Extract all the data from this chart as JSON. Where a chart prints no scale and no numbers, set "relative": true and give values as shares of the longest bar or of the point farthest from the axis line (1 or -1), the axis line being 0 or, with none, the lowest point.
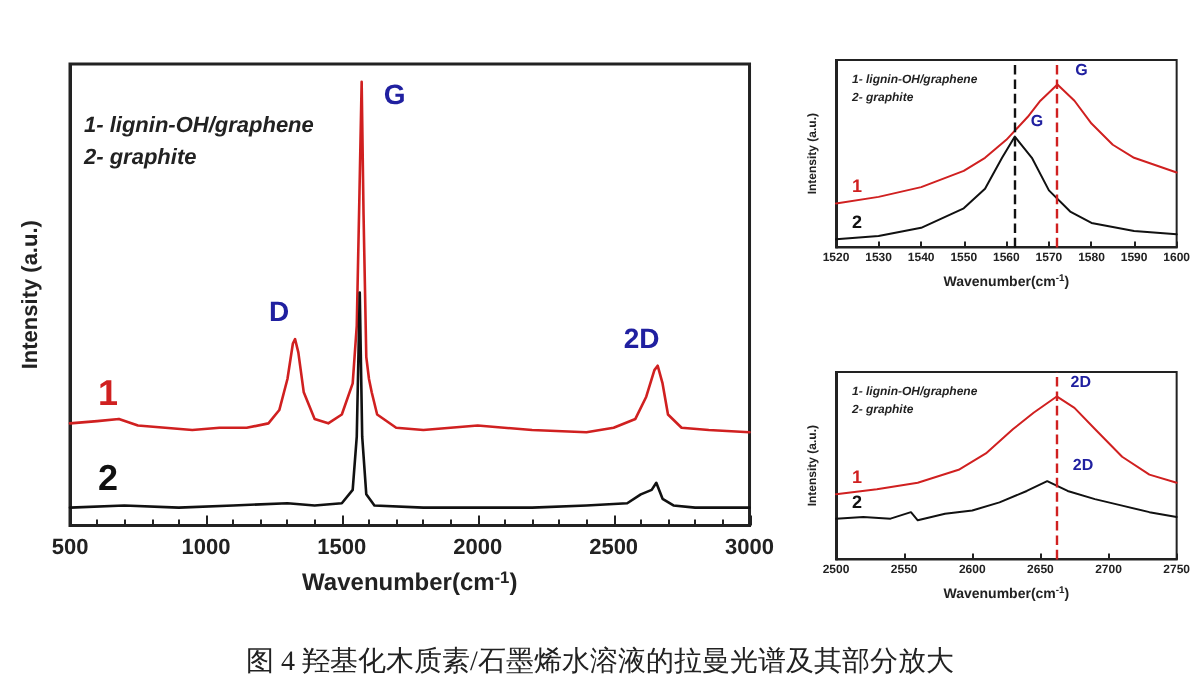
{
  "chart_data": [
    {
      "type": "line",
      "xlabel": "Wavenumber(cm$^{-1}$)",
      "ylabel": "Intensity (a.u.)",
      "relative": true,
      "xlim": [
        500,
        3000
      ],
      "xticks": [
        500,
        1000,
        1500,
        2000,
        2500,
        3000
      ],
      "grid": false,
      "legend": false,
      "line_style": "solid",
      "tick_labels": "x",
      "annotations": [
        "1- lignin-OH/graphene",
        "2- graphite",
        {
          "text": "D",
          "x": 1328,
          "y": 0.42
        },
        {
          "text": "G",
          "x": 1573,
          "y": 1.0
        },
        {
          "text": "2D",
          "x": 2662,
          "y": 0.36
        },
        "图 4 羟基化木质素/石墨烯水溶液的拉曼光谱及其部分放大"
      ],
      "series": [
        {
          "name": "1",
          "color": "#d02020",
          "x": [
            500,
            600,
            680,
            750,
            850,
            950,
            1050,
            1150,
            1230,
            1270,
            1300,
            1320,
            1328,
            1340,
            1360,
            1400,
            1450,
            1500,
            1540,
            1555,
            1565,
            1573,
            1580,
            1590,
            1600,
            1610,
            1630,
            1700,
            1800,
            2000,
            2200,
            2400,
            2500,
            2580,
            2620,
            2650,
            2662,
            2680,
            2700,
            2750,
            2850,
            3000
          ],
          "values": [
            0.23,
            0.235,
            0.24,
            0.225,
            0.22,
            0.215,
            0.22,
            0.22,
            0.23,
            0.26,
            0.33,
            0.41,
            0.42,
            0.39,
            0.3,
            0.24,
            0.23,
            0.25,
            0.32,
            0.45,
            0.75,
            1.0,
            0.7,
            0.38,
            0.33,
            0.3,
            0.25,
            0.22,
            0.215,
            0.225,
            0.215,
            0.21,
            0.22,
            0.24,
            0.29,
            0.35,
            0.36,
            0.32,
            0.25,
            0.22,
            0.215,
            0.21
          ]
        },
        {
          "name": "2",
          "color": "#111111",
          "x": [
            500,
            700,
            900,
            1100,
            1300,
            1400,
            1500,
            1540,
            1555,
            1566,
            1575,
            1590,
            1620,
            1800,
            2000,
            2200,
            2400,
            2550,
            2600,
            2640,
            2657,
            2680,
            2720,
            2800,
            3000
          ],
          "values": [
            0.04,
            0.045,
            0.04,
            0.045,
            0.05,
            0.045,
            0.05,
            0.08,
            0.2,
            0.525,
            0.2,
            0.07,
            0.045,
            0.04,
            0.04,
            0.04,
            0.045,
            0.05,
            0.07,
            0.08,
            0.096,
            0.06,
            0.045,
            0.04,
            0.04
          ]
        }
      ]
    },
    {
      "type": "line",
      "xlabel": "Wavenumber(cm$^{-1}$)",
      "ylabel": "Intensity (a.u.)",
      "relative": true,
      "xlim": [
        1520,
        1600
      ],
      "xticks": [
        1520,
        1530,
        1540,
        1550,
        1560,
        1570,
        1580,
        1590,
        1600
      ],
      "grid": false,
      "legend": false,
      "line_style": "solid",
      "tick_labels": "x",
      "annotations": [
        "1- lignin-OH/graphene",
        "2- graphite",
        {
          "text": "G",
          "x": 1572,
          "y": 1.0
        },
        {
          "text": "G",
          "x": 1562,
          "y": 0.68
        }
      ],
      "ref_lines": [
        {
          "axis": "x",
          "value": 1572,
          "color": "#d02020",
          "line_style": "dashed"
        },
        {
          "axis": "x",
          "value": 1562,
          "color": "#111111",
          "line_style": "dashed"
        }
      ],
      "series": [
        {
          "name": "1",
          "color": "#d02020",
          "x": [
            1520,
            1530,
            1540,
            1550,
            1555,
            1560,
            1565,
            1568,
            1572,
            1576,
            1580,
            1585,
            1590,
            1600
          ],
          "values": [
            0.27,
            0.31,
            0.37,
            0.47,
            0.55,
            0.66,
            0.8,
            0.9,
            1.0,
            0.9,
            0.76,
            0.63,
            0.55,
            0.46
          ]
        },
        {
          "name": "2",
          "color": "#111111",
          "x": [
            1520,
            1530,
            1540,
            1550,
            1555,
            1559,
            1562,
            1566,
            1570,
            1575,
            1580,
            1590,
            1600
          ],
          "values": [
            0.05,
            0.07,
            0.12,
            0.24,
            0.36,
            0.55,
            0.68,
            0.55,
            0.35,
            0.22,
            0.15,
            0.1,
            0.08
          ]
        }
      ]
    },
    {
      "type": "line",
      "xlabel": "Wavenumber(cm$^{-1}$)",
      "ylabel": "Intensity (a.u.)",
      "relative": true,
      "xlim": [
        2500,
        2750
      ],
      "xticks": [
        2500,
        2550,
        2600,
        2650,
        2700,
        2750
      ],
      "grid": false,
      "legend": false,
      "line_style": "solid",
      "tick_labels": "x",
      "annotations": [
        "1- lignin-OH/graphene",
        "2- graphite",
        {
          "text": "2D",
          "x": 2662,
          "y": 1.0
        },
        {
          "text": "2D",
          "x": 2662,
          "y": 0.48
        }
      ],
      "ref_lines": [
        {
          "axis": "x",
          "value": 2662,
          "color": "#d02020",
          "line_style": "dashed"
        }
      ],
      "series": [
        {
          "name": "1",
          "color": "#d02020",
          "x": [
            2500,
            2530,
            2560,
            2590,
            2610,
            2630,
            2645,
            2662,
            2675,
            2690,
            2710,
            2730,
            2750
          ],
          "values": [
            0.4,
            0.43,
            0.47,
            0.55,
            0.65,
            0.8,
            0.9,
            1.0,
            0.93,
            0.8,
            0.63,
            0.52,
            0.47
          ]
        },
        {
          "name": "2",
          "color": "#111111",
          "x": [
            2500,
            2520,
            2540,
            2555,
            2560,
            2580,
            2600,
            2620,
            2640,
            2655,
            2670,
            2690,
            2710,
            2730,
            2750
          ],
          "values": [
            0.25,
            0.26,
            0.25,
            0.29,
            0.24,
            0.28,
            0.3,
            0.35,
            0.42,
            0.48,
            0.42,
            0.37,
            0.33,
            0.29,
            0.26
          ]
        }
      ]
    }
  ]
}
